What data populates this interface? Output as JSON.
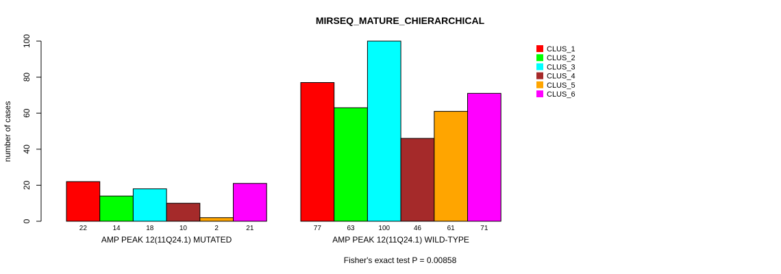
{
  "chart_data": {
    "type": "bar",
    "title": "MIRSEQ_MATURE_CHIERARCHICAL",
    "ylabel": "number of cases",
    "ylim": [
      0,
      100
    ],
    "yticks": [
      0,
      20,
      40,
      60,
      80,
      100
    ],
    "groups": [
      {
        "label": "AMP PEAK 12(11Q24.1) MUTATED",
        "values": [
          22,
          14,
          18,
          10,
          2,
          21
        ],
        "value_labels": [
          "22",
          "14",
          "18",
          "10",
          "2",
          "21"
        ]
      },
      {
        "label": "AMP PEAK 12(11Q24.1) WILD-TYPE",
        "values": [
          77,
          63,
          100,
          46,
          61,
          71
        ],
        "value_labels": [
          "77",
          "63",
          "100",
          "46",
          "61",
          "71"
        ]
      }
    ],
    "series": [
      {
        "name": "CLUS_1",
        "color": "#ff0000"
      },
      {
        "name": "CLUS_2",
        "color": "#00ff00"
      },
      {
        "name": "CLUS_3",
        "color": "#00ffff"
      },
      {
        "name": "CLUS_4",
        "color": "#a52a2a"
      },
      {
        "name": "CLUS_5",
        "color": "#ffa500"
      },
      {
        "name": "CLUS_6",
        "color": "#ff00ff"
      }
    ],
    "legend_position": "top-right",
    "footnote": "Fisher's exact test P = 0.00858"
  }
}
